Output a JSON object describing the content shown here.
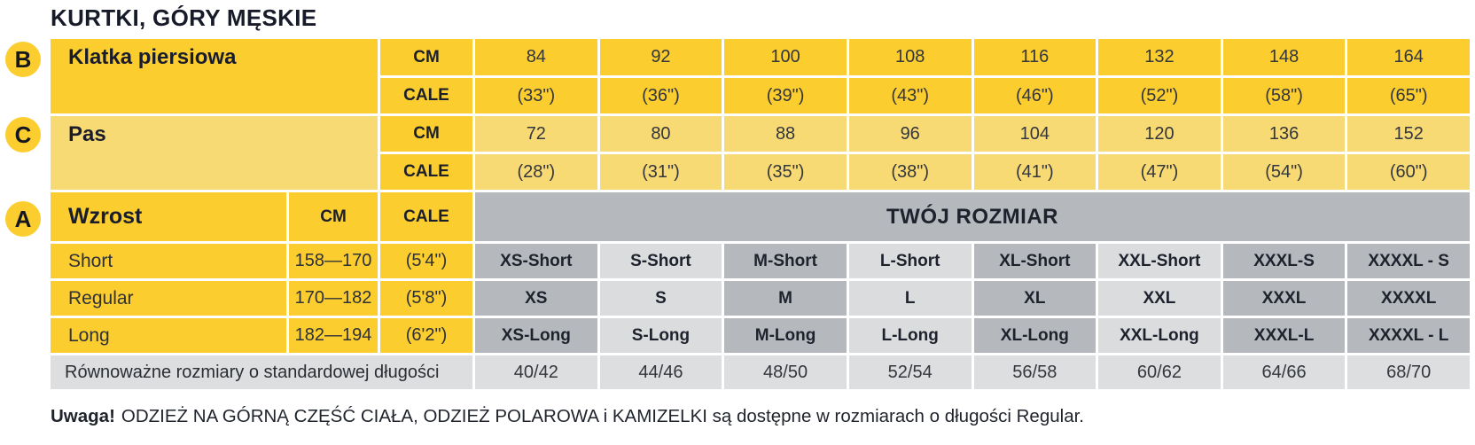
{
  "title": "KURTKI, GÓRY MĘSKIE",
  "colors": {
    "yellow": "#fbcd2e",
    "light_yellow": "#f8da74",
    "gray_dark": "#b5b8bd",
    "gray_light": "#dbdcde",
    "gray_equivalent": "#dddedf",
    "text_dark": "#1a1e2c"
  },
  "sections": {
    "chest": {
      "badge": "B",
      "label": "Klatka piersiowa",
      "unit_cm": "CM",
      "unit_cale": "CALE",
      "cm": [
        "84",
        "92",
        "100",
        "108",
        "116",
        "132",
        "148",
        "164"
      ],
      "cale": [
        "(33\")",
        "(36\")",
        "(39\")",
        "(43\")",
        "(46\")",
        "(52\")",
        "(58\")",
        "(65\")"
      ]
    },
    "waist": {
      "badge": "C",
      "label": "Pas",
      "unit_cm": "CM",
      "unit_cale": "CALE",
      "cm": [
        "72",
        "80",
        "88",
        "96",
        "104",
        "120",
        "136",
        "152"
      ],
      "cale": [
        "(28\")",
        "(31\")",
        "(35\")",
        "(38\")",
        "(41\")",
        "(47\")",
        "(54\")",
        "(60\")"
      ]
    },
    "height": {
      "badge": "A",
      "label": "Wzrost",
      "unit_cm": "CM",
      "unit_cale": "CALE",
      "your_size_label": "TWÓJ ROZMIAR",
      "rows": [
        {
          "label": "Short",
          "cm": "158—170",
          "cale": "(5'4\")",
          "sizes": [
            "XS-Short",
            "S-Short",
            "M-Short",
            "L-Short",
            "XL-Short",
            "XXL-Short",
            "XXXL-S",
            "XXXXL - S"
          ]
        },
        {
          "label": "Regular",
          "cm": "170—182",
          "cale": "(5'8\")",
          "sizes": [
            "XS",
            "S",
            "M",
            "L",
            "XL",
            "XXL",
            "XXXL",
            "XXXXL"
          ]
        },
        {
          "label": "Long",
          "cm": "182—194",
          "cale": "(6'2\")",
          "sizes": [
            "XS-Long",
            "S-Long",
            "M-Long",
            "L-Long",
            "XL-Long",
            "XXL-Long",
            "XXXL-L",
            "XXXXL - L"
          ]
        }
      ]
    },
    "equivalent": {
      "label": "Równoważne rozmiary o standardowej długości",
      "values": [
        "40/42",
        "44/46",
        "48/50",
        "52/54",
        "56/58",
        "60/62",
        "64/66",
        "68/70"
      ]
    }
  },
  "footer": {
    "bold": "Uwaga!",
    "text": "ODZIEŻ NA GÓRNĄ CZĘŚĆ CIAŁA, ODZIEŻ POLAROWA i KAMIZELKI są dostępne w rozmiarach o długości Regular."
  },
  "chart_data": {
    "type": "table",
    "title": "KURTKI, GÓRY MĘSKIE",
    "size_columns": [
      "XS",
      "S",
      "M",
      "L",
      "XL",
      "XXL",
      "XXXL",
      "XXXXL"
    ],
    "rows": [
      {
        "measure": "Klatka piersiowa",
        "unit": "CM",
        "values": [
          84,
          92,
          100,
          108,
          116,
          132,
          148,
          164
        ]
      },
      {
        "measure": "Klatka piersiowa",
        "unit": "CALE",
        "values": [
          "(33\")",
          "(36\")",
          "(39\")",
          "(43\")",
          "(46\")",
          "(52\")",
          "(58\")",
          "(65\")"
        ]
      },
      {
        "measure": "Pas",
        "unit": "CM",
        "values": [
          72,
          80,
          88,
          96,
          104,
          120,
          136,
          152
        ]
      },
      {
        "measure": "Pas",
        "unit": "CALE",
        "values": [
          "(28\")",
          "(31\")",
          "(35\")",
          "(38\")",
          "(41\")",
          "(47\")",
          "(54\")",
          "(60\")"
        ]
      },
      {
        "measure": "Wzrost Short",
        "unit": "CM / CALE",
        "range": "158—170 (5'4\")",
        "values": [
          "XS-Short",
          "S-Short",
          "M-Short",
          "L-Short",
          "XL-Short",
          "XXL-Short",
          "XXXL-S",
          "XXXXL - S"
        ]
      },
      {
        "measure": "Wzrost Regular",
        "unit": "CM / CALE",
        "range": "170—182 (5'8\")",
        "values": [
          "XS",
          "S",
          "M",
          "L",
          "XL",
          "XXL",
          "XXXL",
          "XXXXL"
        ]
      },
      {
        "measure": "Wzrost Long",
        "unit": "CM / CALE",
        "range": "182—194 (6'2\")",
        "values": [
          "XS-Long",
          "S-Long",
          "M-Long",
          "L-Long",
          "XL-Long",
          "XXL-Long",
          "XXXL-L",
          "XXXXL - L"
        ]
      },
      {
        "measure": "Równoważne rozmiary o standardowej długości",
        "values": [
          "40/42",
          "44/46",
          "48/50",
          "52/54",
          "56/58",
          "60/62",
          "64/66",
          "68/70"
        ]
      }
    ]
  }
}
